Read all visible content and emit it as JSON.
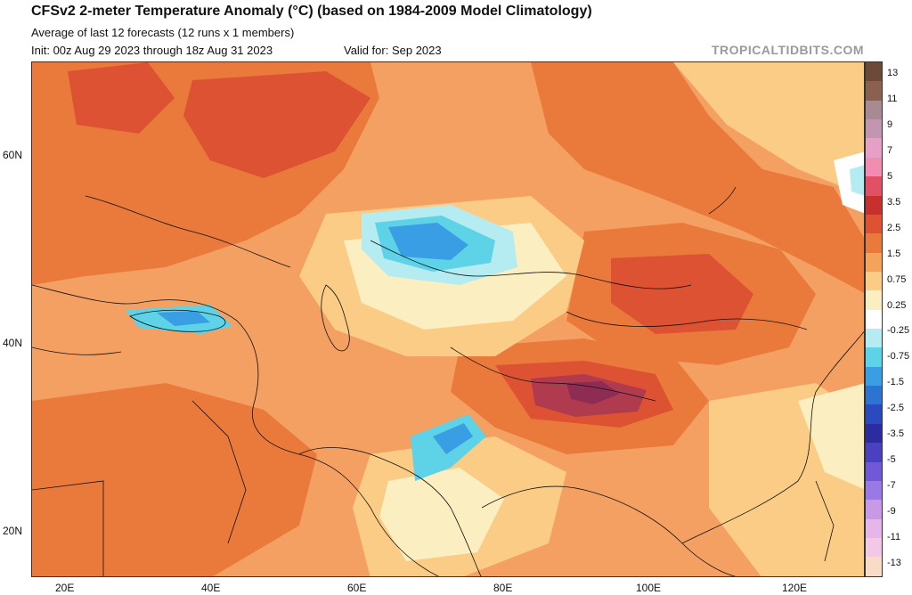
{
  "header": {
    "title": "CFSv2 2-meter Temperature Anomaly (°C) (based on 1984-2009 Model Climatology)",
    "subtitle": "Average of last 12 forecasts (12 runs x 1 members)",
    "init": "Init: 00z Aug 29 2023 through 18z Aug 31 2023",
    "valid": "Valid for: Sep 2023",
    "brand": "TROPICALTIDBITS.COM"
  },
  "axes": {
    "lat_labels": [
      "60N",
      "40N",
      "20N"
    ],
    "lon_labels": [
      "20E",
      "40E",
      "60E",
      "80E",
      "100E",
      "120E"
    ]
  },
  "colorbar": {
    "labels": [
      "13",
      "11",
      "9",
      "7",
      "5",
      "3.5",
      "2.5",
      "1.5",
      "0.75",
      "0.25",
      "-0.25",
      "-0.75",
      "-1.5",
      "-2.5",
      "-3.5",
      "-5",
      "-7",
      "-9",
      "-11",
      "-13"
    ],
    "colors": [
      "#6b4a3a",
      "#8a6050",
      "#a88a95",
      "#c295b0",
      "#e6a0c8",
      "#f28cb0",
      "#e25066",
      "#c8302e",
      "#dc5232",
      "#ea7a3c",
      "#f5a35a",
      "#fbcc86",
      "#fbeec0",
      "#ffffff",
      "#b4ecf2",
      "#5ed2e6",
      "#3a9ee4",
      "#2e72d2",
      "#2a4ac0",
      "#2c2ca0",
      "#4a40c0",
      "#7058d8",
      "#9a78e6",
      "#c89ae6",
      "#e6b6ea",
      "#f2c8e6",
      "#f8dcc8"
    ]
  },
  "map_colors": {
    "base": "#f4a062",
    "warm1": "#ea7a3c",
    "warm2": "#dc5232",
    "warm3": "#c8302e",
    "hot": "#a0304c",
    "pale": "#fbcc86",
    "cream": "#fbeec0",
    "white": "#ffffff",
    "cool1": "#b4ecf2",
    "cool2": "#5ed2e6",
    "cool3": "#3a9ee4"
  }
}
